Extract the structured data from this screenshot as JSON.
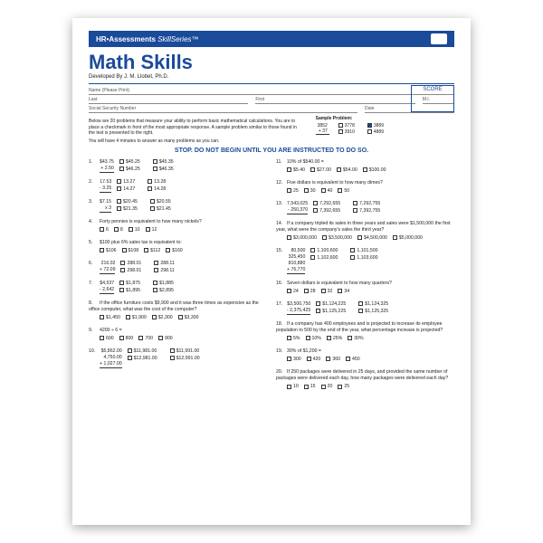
{
  "header": {
    "brand": "HR•Assessments",
    "series": "SkillSeries™"
  },
  "title": "Math Skills",
  "subtitle": "Developed By J. M. Llobet, Ph.D.",
  "fields": {
    "name": "Name (Please Print)",
    "last": "Last",
    "first": "First",
    "mi": "M.I.",
    "ssn": "Social Security Number",
    "date": "Date"
  },
  "score_label": "SCORE",
  "instructions": "Below are 20 problems that measure your ability to perform basic mathematical calculations. You are to place a checkmark in front of the most appropriate response. A sample problem similar to those found in the test is presented to the right.",
  "time_note": "You will have 4 minutes to answer as many problems as you can.",
  "sample": {
    "label": "Sample Problem:",
    "lines": [
      "3852",
      "+   37"
    ],
    "opts": [
      "3778",
      "3889",
      "3910",
      "4889"
    ],
    "checked": 1
  },
  "stop": "STOP. DO NOT BEGIN UNTIL YOU ARE INSTRUCTED TO DO SO.",
  "left": [
    {
      "n": "1.",
      "math": [
        "$43.75",
        "+  2.50"
      ],
      "opts": [
        "$45.25",
        "$45.35",
        "$46.25",
        "$46.35"
      ]
    },
    {
      "n": "2.",
      "math": [
        "17.53",
        "-  3.25"
      ],
      "opts": [
        "13.27",
        "13.28",
        "14.27",
        "14.28"
      ]
    },
    {
      "n": "3.",
      "math": [
        "$7.15",
        "x     3"
      ],
      "opts": [
        "$20.45",
        "$20.55",
        "$21.35",
        "$21.45"
      ]
    },
    {
      "n": "4.",
      "text": "Forty pennies is equivalent to how many nickels?",
      "opts": [
        "6",
        "8",
        "10",
        "12"
      ]
    },
    {
      "n": "5.",
      "text": "$100 plus 6% sales tax is equivalent to:",
      "opts": [
        "$106",
        "$108",
        "$112",
        "$160"
      ]
    },
    {
      "n": "6.",
      "math": [
        "216.02",
        "+ 72.09"
      ],
      "opts": [
        "288.01",
        "288.11",
        "298.01",
        "298.11"
      ]
    },
    {
      "n": "7.",
      "math": [
        "$4,537",
        "-  2,642"
      ],
      "opts": [
        "$1,875",
        "$1,885",
        "$1,895",
        "$2,895"
      ]
    },
    {
      "n": "8.",
      "text": "If the office furniture costs $9,900 and it was three times as expensive as the office computer, what was the cost of the computer?",
      "opts": [
        "$1,450",
        "$1,900",
        "$2,300",
        "$3,300"
      ]
    },
    {
      "n": "9.",
      "text": "4200 ÷ 6 =",
      "opts": [
        "600",
        "800",
        "700",
        "900"
      ]
    },
    {
      "n": "10.",
      "math": [
        "$5,862.00",
        "4,750.00",
        "+ 1,027.00"
      ],
      "opts": [
        "$11,981.00",
        "$11,991.00",
        "$12,981.00",
        "$12,991.00"
      ]
    }
  ],
  "right": [
    {
      "n": "11.",
      "text": "10% of $540.00 =",
      "opts": [
        "$5.40",
        "$27.00",
        "$54.00",
        "$100.00"
      ]
    },
    {
      "n": "12.",
      "text": "Five dollars is equivalent to how many dimes?",
      "opts": [
        "25",
        "30",
        "40",
        "50"
      ]
    },
    {
      "n": "13.",
      "math": [
        "7,543,025",
        "-   250,370"
      ],
      "opts": [
        "7,292,655",
        "7,292,755",
        "7,392,655",
        "7,392,755"
      ]
    },
    {
      "n": "14.",
      "text": "If a company tripled its sales in three years and sales were $1,500,000 the first year, what were the company's sales the third year?",
      "opts": [
        "$3,000,000",
        "$3,500,000",
        "$4,500,000",
        "$5,000,000"
      ]
    },
    {
      "n": "15.",
      "math": [
        "80,500",
        "325,450",
        "810,880",
        "+  76,770"
      ],
      "opts": [
        "1,100,600",
        "1,101,500",
        "1,102,600",
        "1,103,600"
      ]
    },
    {
      "n": "16.",
      "text": "Seven dollars is equivalent to how many quarters?",
      "opts": [
        "24",
        "28",
        "32",
        "34"
      ]
    },
    {
      "n": "17.",
      "math": [
        "$3,500,750",
        "-  2,375,425"
      ],
      "opts": [
        "$1,124,225",
        "$1,124,325",
        "$1,125,225",
        "$1,125,325"
      ]
    },
    {
      "n": "18.",
      "text": "If a company has 400 employees and is projected to increase its employee population to 500 by the end of the year, what percentage increase is projected?",
      "opts": [
        "5%",
        "10%",
        "25%",
        "30%"
      ]
    },
    {
      "n": "19.",
      "text": "30% of $1,200 =",
      "opts": [
        "300",
        "420",
        "360",
        "450"
      ]
    },
    {
      "n": "20.",
      "text": "If 250 packages were delivered in 25 days, and provided the same number of packages were delivered each day, how many packages were delivered each day?",
      "opts": [
        "10",
        "15",
        "20",
        "25"
      ]
    }
  ]
}
